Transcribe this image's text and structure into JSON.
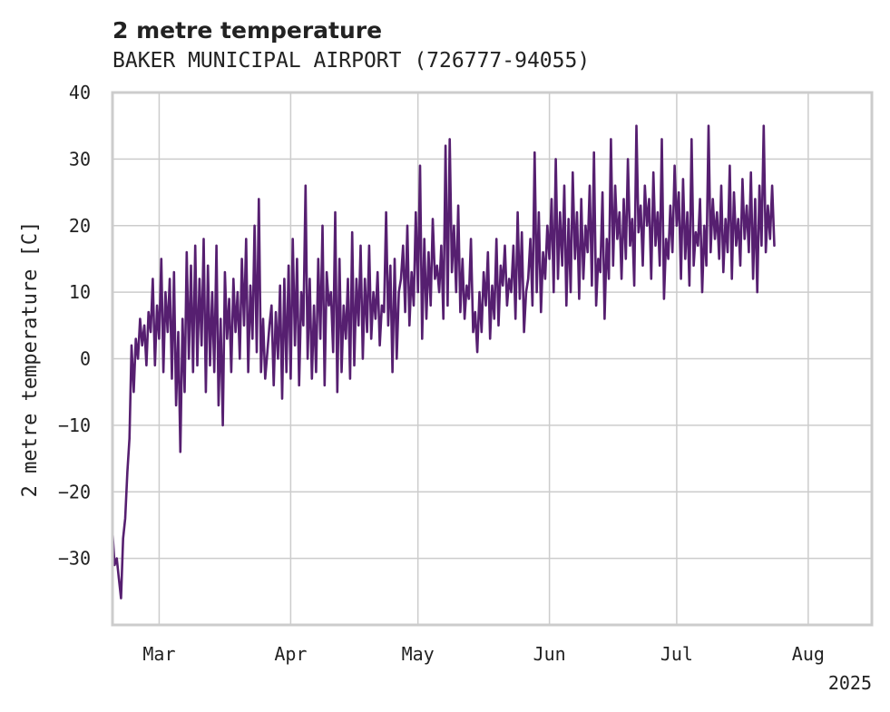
{
  "chart_data": {
    "type": "line",
    "title": "2 metre temperature",
    "subtitle": "BAKER MUNICIPAL AIRPORT (726777-94055)",
    "xlabel": "",
    "ylabel": "2 metre temperature [C]",
    "xlim": [
      "2025-02-18",
      "2025-08-16"
    ],
    "ylim": [
      -40,
      40
    ],
    "yticks": [
      -30,
      -20,
      -10,
      0,
      10,
      20,
      30,
      40
    ],
    "xticks": [
      {
        "date": "2025-03-01",
        "label": "Mar"
      },
      {
        "date": "2025-04-01",
        "label": "Apr"
      },
      {
        "date": "2025-05-01",
        "label": "May"
      },
      {
        "date": "2025-06-01",
        "label": "Jun"
      },
      {
        "date": "2025-07-01",
        "label": "Jul"
      },
      {
        "date": "2025-08-01",
        "label": "Aug"
      }
    ],
    "x_offset_label": "2025",
    "grid": true,
    "series": [
      {
        "color": "#561f70",
        "x_start": "2025-02-18",
        "step_days": 0.5,
        "values": [
          -26,
          -31,
          -30,
          -33,
          -36,
          -27,
          -24,
          -17,
          -12,
          2,
          -5,
          3,
          0,
          6,
          2,
          5,
          -1,
          7,
          4,
          12,
          -1,
          8,
          3,
          15,
          -2,
          10,
          4,
          12,
          -3,
          13,
          -7,
          4,
          -14,
          6,
          -5,
          16,
          0,
          14,
          -2,
          17,
          -1,
          12,
          2,
          18,
          -5,
          14,
          -1,
          10,
          -2,
          17,
          -7,
          6,
          -10,
          13,
          3,
          9,
          -2,
          12,
          4,
          10,
          0,
          15,
          5,
          18,
          -2,
          11,
          3,
          20,
          1,
          24,
          -2,
          6,
          -3,
          1,
          5,
          8,
          -4,
          7,
          0,
          11,
          -6,
          12,
          -2,
          14,
          -3,
          18,
          2,
          15,
          -4,
          10,
          5,
          26,
          0,
          12,
          -3,
          8,
          -2,
          15,
          3,
          20,
          -4,
          13,
          8,
          10,
          1,
          22,
          -5,
          15,
          -2,
          8,
          3,
          12,
          -3,
          19,
          -1,
          12,
          5,
          17,
          0,
          12,
          4,
          17,
          3,
          10,
          6,
          13,
          2,
          8,
          7,
          22,
          5,
          14,
          -2,
          15,
          0,
          10,
          12,
          17,
          7,
          20,
          5,
          13,
          8,
          22,
          10,
          29,
          3,
          18,
          6,
          16,
          8,
          21,
          12,
          14,
          10,
          17,
          6,
          32,
          8,
          33,
          13,
          20,
          10,
          23,
          7,
          15,
          6,
          11,
          9,
          18,
          4,
          7,
          1,
          10,
          4,
          13,
          8,
          16,
          3,
          11,
          6,
          18,
          5,
          14,
          11,
          17,
          8,
          12,
          10,
          17,
          6,
          22,
          9,
          19,
          4,
          10,
          12,
          18,
          8,
          31,
          10,
          22,
          7,
          16,
          12,
          20,
          15,
          24,
          10,
          30,
          12,
          22,
          14,
          26,
          8,
          21,
          10,
          28,
          15,
          22,
          9,
          24,
          12,
          20,
          16,
          26,
          11,
          31,
          8,
          15,
          13,
          25,
          6,
          18,
          12,
          33,
          14,
          26,
          18,
          22,
          12,
          24,
          15,
          30,
          17,
          21,
          11,
          35,
          19,
          23,
          14,
          26,
          20,
          24,
          12,
          28,
          17,
          22,
          14,
          33,
          9,
          18,
          15,
          23,
          16,
          29,
          20,
          25,
          12,
          27,
          15,
          22,
          11,
          33,
          14,
          19,
          17,
          24,
          10,
          20,
          14,
          35,
          16,
          24,
          18,
          22,
          15,
          26,
          13,
          21,
          16,
          29,
          12,
          25,
          17,
          21,
          14,
          27,
          18,
          23,
          16,
          28,
          12,
          24,
          10,
          26,
          17,
          35,
          16,
          23,
          18,
          26,
          17
        ]
      }
    ]
  }
}
